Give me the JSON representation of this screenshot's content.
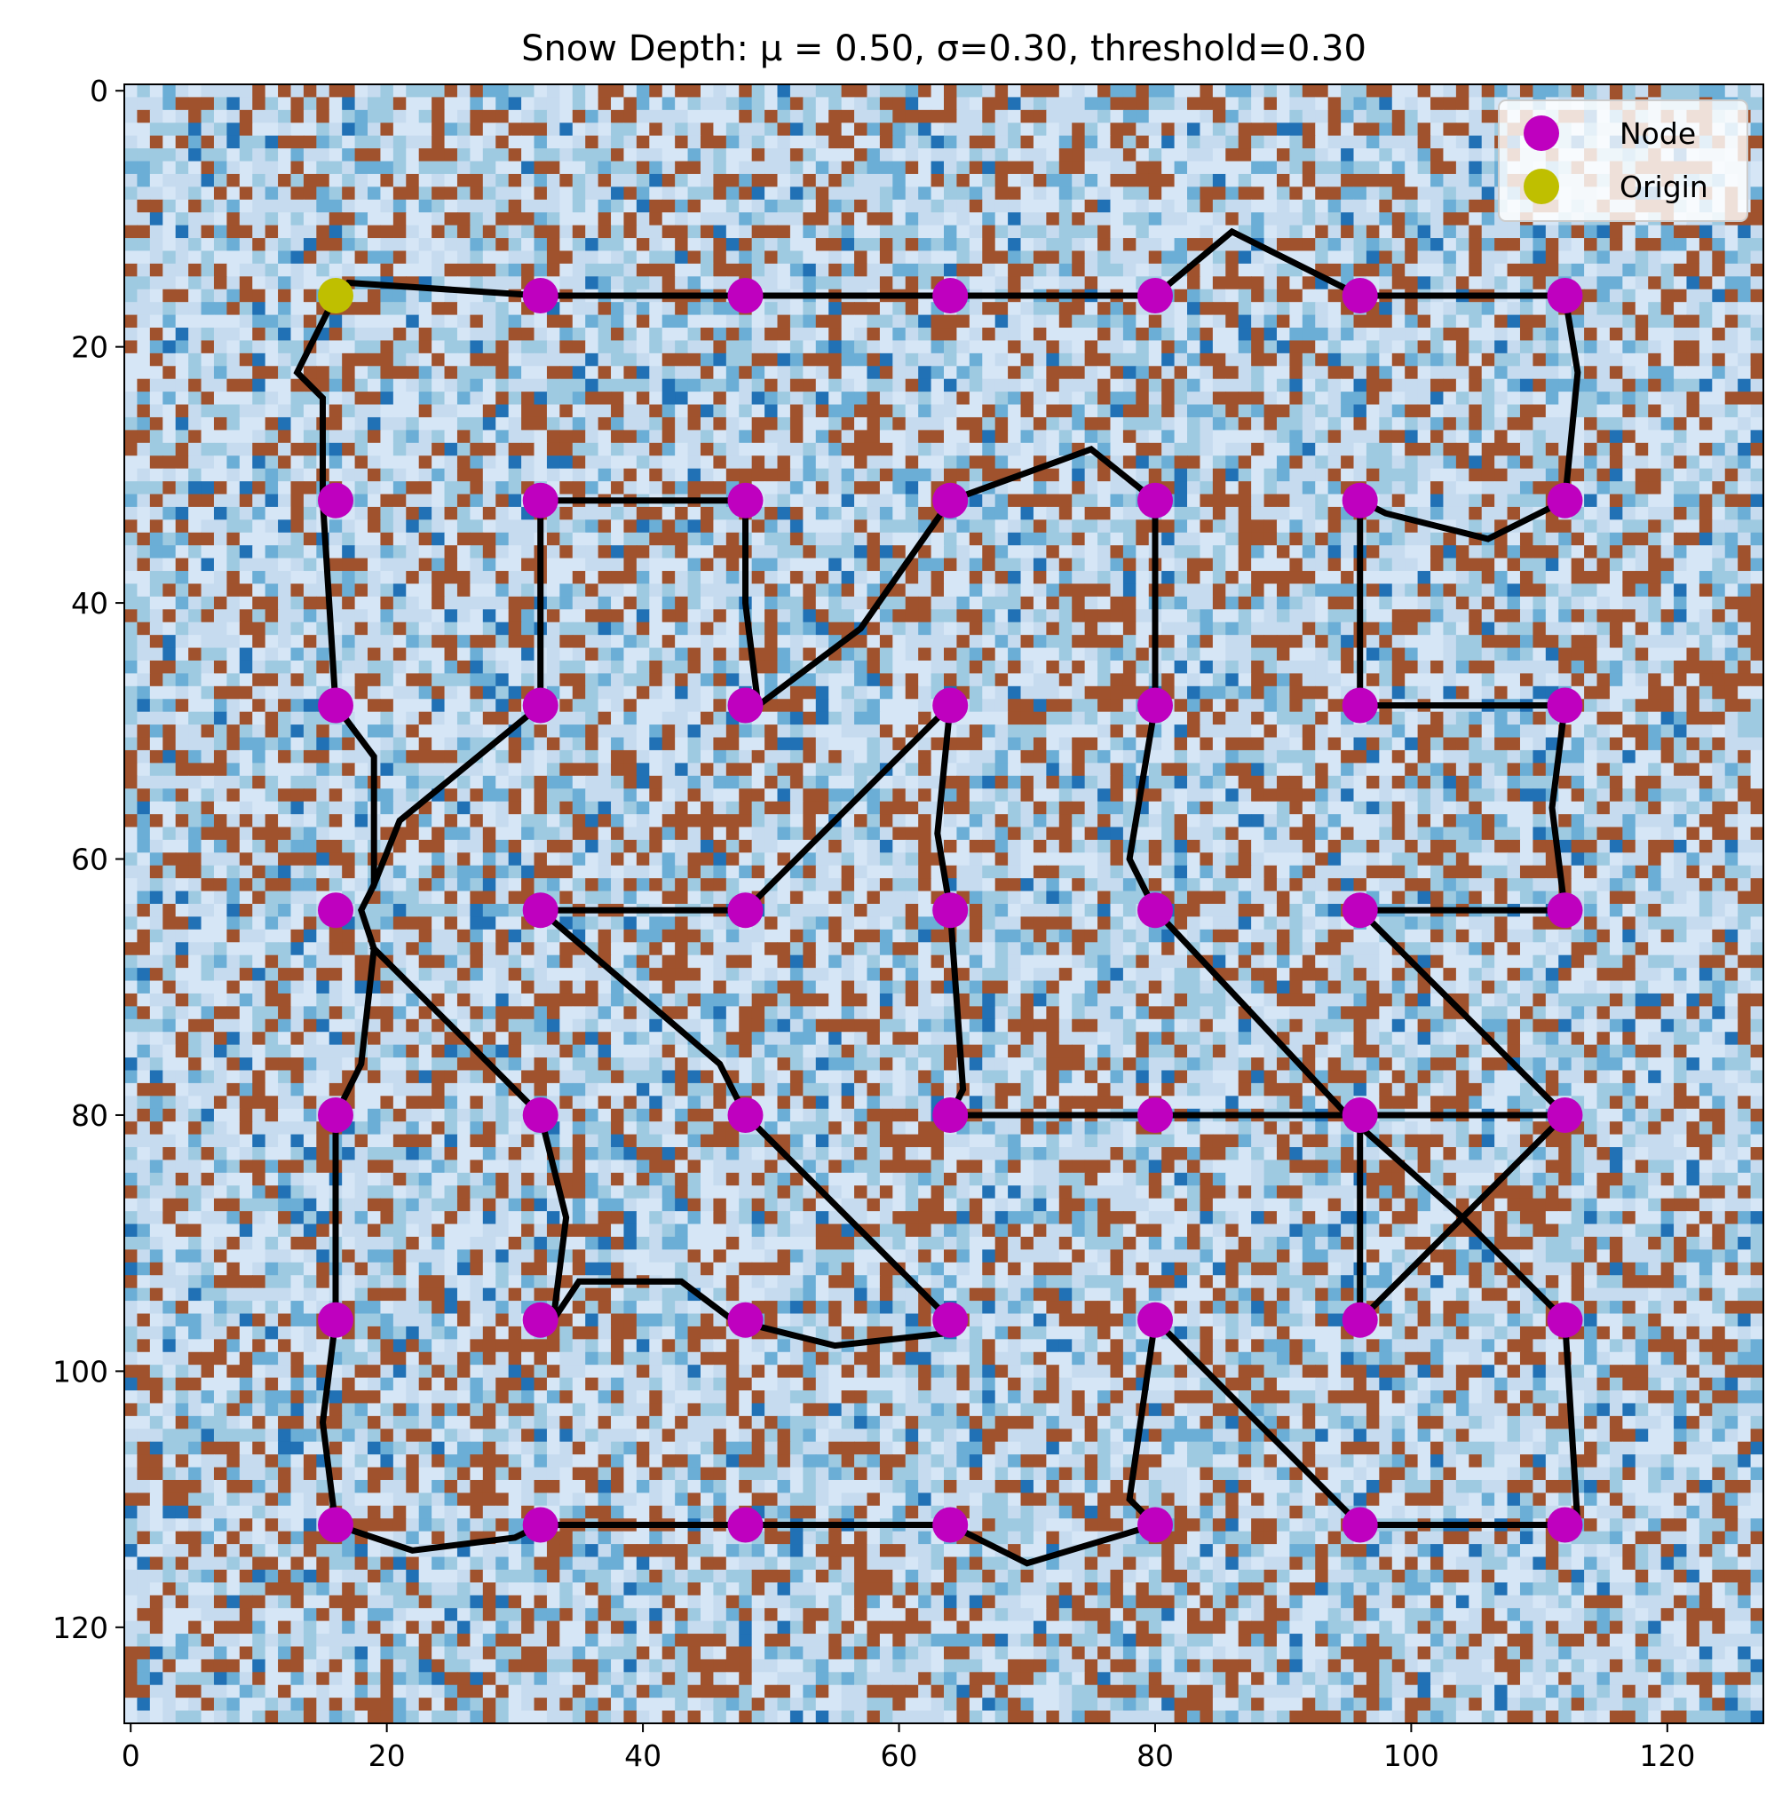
{
  "chart_data": {
    "type": "scatter",
    "title": "Snow Depth: μ = 0.50, σ=0.30, threshold=0.30",
    "xlabel": "",
    "ylabel": "",
    "xlim": [
      0,
      127
    ],
    "ylim": [
      127,
      0
    ],
    "grid_size": 128,
    "background": {
      "kind": "heatmap",
      "mean": 0.5,
      "sigma": 0.3,
      "threshold": 0.3,
      "below_threshold_color": "#a0522d",
      "colormap": [
        "#d6e6f6",
        "#c6dbef",
        "#9ecae1",
        "#6baed6",
        "#2171b5"
      ]
    },
    "x_ticks": [
      0,
      20,
      40,
      60,
      80,
      100,
      120
    ],
    "y_ticks": [
      0,
      20,
      40,
      60,
      80,
      100,
      120
    ],
    "legend": {
      "placement": "upper right",
      "entries": [
        {
          "label": "Node",
          "color": "#bf00bf"
        },
        {
          "label": "Origin",
          "color": "#bfbf00"
        }
      ]
    },
    "series": [
      {
        "name": "Node",
        "color": "#bf00bf",
        "points": [
          [
            32,
            16
          ],
          [
            48,
            16
          ],
          [
            64,
            16
          ],
          [
            80,
            16
          ],
          [
            96,
            16
          ],
          [
            112,
            16
          ],
          [
            16,
            32
          ],
          [
            32,
            32
          ],
          [
            48,
            32
          ],
          [
            64,
            32
          ],
          [
            80,
            32
          ],
          [
            96,
            32
          ],
          [
            112,
            32
          ],
          [
            16,
            48
          ],
          [
            32,
            48
          ],
          [
            48,
            48
          ],
          [
            64,
            48
          ],
          [
            80,
            48
          ],
          [
            96,
            48
          ],
          [
            112,
            48
          ],
          [
            16,
            64
          ],
          [
            32,
            64
          ],
          [
            48,
            64
          ],
          [
            64,
            64
          ],
          [
            80,
            64
          ],
          [
            96,
            64
          ],
          [
            112,
            64
          ],
          [
            16,
            80
          ],
          [
            32,
            80
          ],
          [
            48,
            80
          ],
          [
            64,
            80
          ],
          [
            80,
            80
          ],
          [
            96,
            80
          ],
          [
            112,
            80
          ],
          [
            16,
            96
          ],
          [
            32,
            96
          ],
          [
            48,
            96
          ],
          [
            64,
            96
          ],
          [
            80,
            96
          ],
          [
            96,
            96
          ],
          [
            112,
            96
          ],
          [
            16,
            112
          ],
          [
            32,
            112
          ],
          [
            48,
            112
          ],
          [
            64,
            112
          ],
          [
            80,
            112
          ],
          [
            96,
            112
          ],
          [
            112,
            112
          ]
        ]
      },
      {
        "name": "Origin",
        "color": "#bfbf00",
        "points": [
          [
            16,
            16
          ]
        ]
      }
    ],
    "paths": {
      "color": "#000000",
      "segments": [
        [
          [
            16,
            16
          ],
          [
            17,
            15
          ],
          [
            32,
            16
          ],
          [
            48,
            16
          ],
          [
            64,
            16
          ],
          [
            80,
            16
          ],
          [
            86,
            11
          ],
          [
            96,
            16
          ],
          [
            112,
            16
          ]
        ],
        [
          [
            16,
            16
          ],
          [
            14,
            20
          ],
          [
            13,
            22
          ],
          [
            15,
            24
          ],
          [
            15,
            32
          ],
          [
            16,
            48
          ],
          [
            19,
            52
          ],
          [
            19,
            62
          ],
          [
            18,
            64
          ],
          [
            19,
            67
          ],
          [
            18,
            76
          ],
          [
            16,
            80
          ],
          [
            16,
            96
          ],
          [
            15,
            104
          ],
          [
            16,
            112
          ],
          [
            22,
            114
          ],
          [
            30,
            113
          ],
          [
            32,
            112
          ],
          [
            48,
            112
          ],
          [
            64,
            112
          ],
          [
            70,
            115
          ],
          [
            80,
            112
          ]
        ],
        [
          [
            112,
            16
          ],
          [
            113,
            22
          ],
          [
            112,
            32
          ],
          [
            106,
            35
          ],
          [
            98,
            33
          ],
          [
            96,
            32
          ],
          [
            96,
            48
          ],
          [
            112,
            48
          ],
          [
            111,
            56
          ],
          [
            112,
            64
          ],
          [
            96,
            64
          ]
        ],
        [
          [
            32,
            32
          ],
          [
            48,
            32
          ],
          [
            48,
            40
          ],
          [
            49,
            48
          ],
          [
            57,
            42
          ],
          [
            64,
            32
          ],
          [
            75,
            28
          ],
          [
            80,
            32
          ],
          [
            80,
            48
          ],
          [
            78,
            60
          ],
          [
            80,
            64
          ]
        ],
        [
          [
            32,
            32
          ],
          [
            32,
            48
          ],
          [
            21,
            57
          ],
          [
            19,
            62
          ]
        ],
        [
          [
            19,
            67
          ],
          [
            26,
            74
          ],
          [
            32,
            80
          ],
          [
            34,
            88
          ],
          [
            33,
            96
          ],
          [
            35,
            93
          ],
          [
            43,
            93
          ],
          [
            47,
            96
          ],
          [
            55,
            98
          ],
          [
            64,
            97
          ]
        ],
        [
          [
            32,
            64
          ],
          [
            48,
            64
          ],
          [
            52,
            60
          ],
          [
            64,
            48
          ],
          [
            63,
            58
          ],
          [
            64,
            64
          ],
          [
            65,
            78
          ],
          [
            64,
            80
          ],
          [
            80,
            80
          ],
          [
            96,
            80
          ],
          [
            112,
            80
          ],
          [
            96,
            96
          ]
        ],
        [
          [
            32,
            64
          ],
          [
            46,
            76
          ],
          [
            48,
            80
          ],
          [
            64,
            96
          ]
        ],
        [
          [
            80,
            64
          ],
          [
            95,
            80
          ],
          [
            104,
            88
          ],
          [
            112,
            96
          ],
          [
            113,
            112
          ],
          [
            112,
            112
          ],
          [
            96,
            112
          ],
          [
            88,
            104
          ],
          [
            80,
            96
          ],
          [
            78,
            110
          ],
          [
            80,
            112
          ]
        ],
        [
          [
            96,
            64
          ],
          [
            112,
            80
          ]
        ],
        [
          [
            96,
            80
          ],
          [
            96,
            96
          ]
        ]
      ]
    }
  }
}
